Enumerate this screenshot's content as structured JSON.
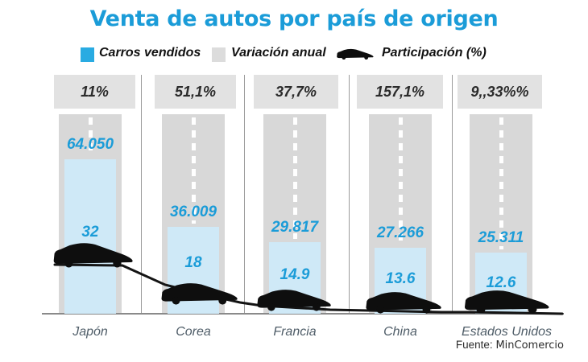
{
  "title": "Venta de autos por país de origen",
  "legend": {
    "items": [
      {
        "label": "Carros vendidos",
        "swatch": "blue-square",
        "color": "#29abe2"
      },
      {
        "label": "Variación anual",
        "swatch": "gray-square",
        "color": "#dcdcdc"
      },
      {
        "label": "Participación (%)",
        "swatch": "car-icon",
        "color": "#0e0e0e"
      }
    ]
  },
  "source": {
    "prefix": "Fuente:",
    "text": "MinComercio"
  },
  "chart_data": {
    "type": "bar",
    "title": "Venta de autos por país de origen",
    "categories": [
      "Japón",
      "Corea",
      "Francia",
      "China",
      "Estados Unidos"
    ],
    "series": [
      {
        "name": "Carros vendidos",
        "values": [
          64050,
          36009,
          29817,
          27266,
          25311
        ],
        "display": [
          "64.050",
          "36.009",
          "29.817",
          "27.266",
          "25.311"
        ],
        "color": "#cfe9f7",
        "label_color": "#1b9cd8"
      },
      {
        "name": "Variación anual",
        "display": [
          "11%",
          "51,1%",
          "37,7%",
          "157,1%",
          "9,,33%%"
        ],
        "color": "#e2e2e2"
      },
      {
        "name": "Participación (%)",
        "values": [
          32,
          18,
          14.9,
          13.6,
          12.6
        ],
        "display": [
          "32",
          "18",
          "14.9",
          "13.6",
          "12.6"
        ],
        "color": "#0e0e0e"
      }
    ],
    "value_axis_max": 64050,
    "legend_position": "top",
    "grid": false,
    "source": "Fuente: MinComercio"
  },
  "colors": {
    "title_blue": "#1b9cd8",
    "number_blue": "#1b9cd8",
    "sales_bar": "#cfe9f7",
    "road_gray": "#d8d8d8",
    "badge_gray": "#e2e2e2",
    "car_black": "#0e0e0e",
    "country_label": "#4f5d68"
  }
}
